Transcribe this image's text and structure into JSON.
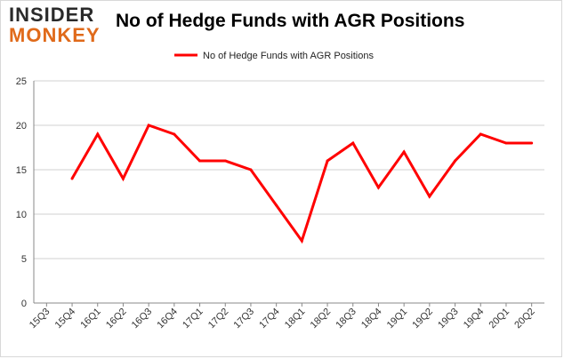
{
  "logo": {
    "top": "INSIDER",
    "bottom": "MONKEY"
  },
  "chart_data": {
    "type": "line",
    "title": "No of Hedge Funds with AGR Positions",
    "xlabel": "",
    "ylabel": "",
    "ylim": [
      0,
      25
    ],
    "yticks": [
      0,
      5,
      10,
      15,
      20,
      25
    ],
    "grid": true,
    "legend_position": "top-center",
    "categories": [
      "15Q3",
      "15Q4",
      "16Q1",
      "16Q2",
      "16Q3",
      "16Q4",
      "17Q1",
      "17Q2",
      "17Q3",
      "17Q4",
      "18Q1",
      "18Q2",
      "18Q3",
      "18Q4",
      "19Q1",
      "19Q2",
      "19Q3",
      "19Q4",
      "20Q1",
      "20Q2"
    ],
    "series": [
      {
        "name": "No of Hedge Funds with AGR Positions",
        "color": "#ff0000",
        "values": [
          null,
          14,
          19,
          14,
          20,
          19,
          16,
          16,
          15,
          11,
          7,
          16,
          18,
          13,
          17,
          12,
          16,
          19,
          18,
          18
        ]
      }
    ]
  }
}
